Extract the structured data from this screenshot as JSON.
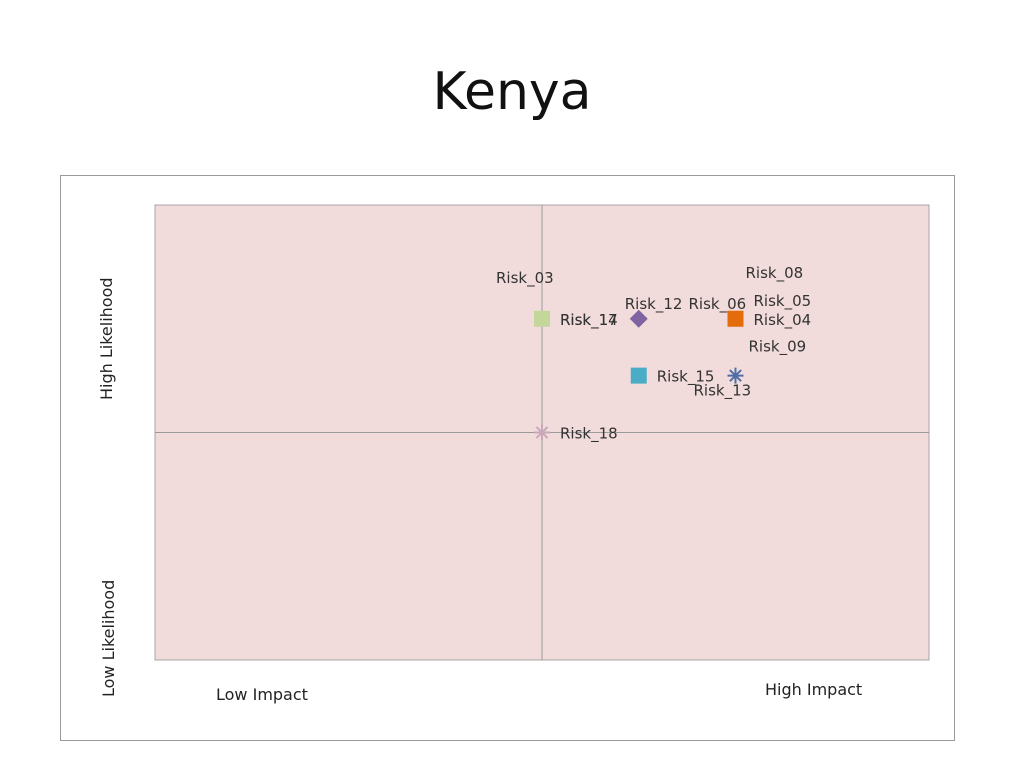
{
  "slide": {
    "title": "Kenya"
  },
  "chart_data": {
    "type": "scatter",
    "title": "",
    "xlabel_low": "Low Impact",
    "xlabel_high": "High Impact",
    "ylabel_low": "Low Likelihood",
    "ylabel_high": "High Likelihood",
    "xlim": [
      0,
      4
    ],
    "ylim": [
      0,
      4
    ],
    "quadrant_lines": {
      "x": 2,
      "y": 2
    },
    "plot_background": "#f2dcdb",
    "points": [
      {
        "label": "Risk_03",
        "x": 2,
        "y": 3,
        "marker": "square",
        "color": "#c4d79b"
      },
      {
        "label": "Risk_17",
        "x": 2,
        "y": 3,
        "marker": "square",
        "color": "#c4d79b"
      },
      {
        "label": "Risk_14",
        "x": 2,
        "y": 3,
        "marker": "square",
        "color": "#c4d79b"
      },
      {
        "label": "Risk_12",
        "x": 2.5,
        "y": 3,
        "marker": "diamond",
        "color": "#8064a2"
      },
      {
        "label": "Risk_08",
        "x": 3,
        "y": 3,
        "marker": "square",
        "color": "#e46c0a"
      },
      {
        "label": "Risk_06",
        "x": 3,
        "y": 3,
        "marker": "square",
        "color": "#e46c0a"
      },
      {
        "label": "Risk_05",
        "x": 3,
        "y": 3,
        "marker": "square",
        "color": "#e46c0a"
      },
      {
        "label": "Risk_04",
        "x": 3,
        "y": 3,
        "marker": "square",
        "color": "#e46c0a"
      },
      {
        "label": "Risk_15",
        "x": 2.5,
        "y": 2.5,
        "marker": "square",
        "color": "#4bacc6"
      },
      {
        "label": "Risk_09",
        "x": 3,
        "y": 2.5,
        "marker": "star",
        "color": "#4f6ea8"
      },
      {
        "label": "Risk_13",
        "x": 3,
        "y": 2.5,
        "marker": "star",
        "color": "#4f6ea8"
      },
      {
        "label": "Risk_18",
        "x": 2,
        "y": 2,
        "marker": "star",
        "color": "#c9a9b9"
      }
    ]
  }
}
